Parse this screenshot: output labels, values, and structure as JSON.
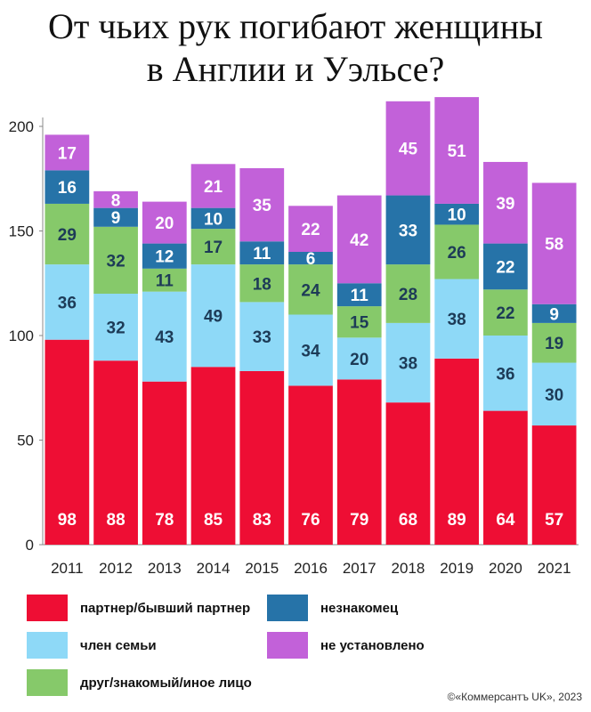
{
  "title_line1": "От чьих рук погибают женщины",
  "title_line2": "в Англии и Уэльсе?",
  "credit": "©«Коммерсантъ UK», 2023",
  "chart_data": {
    "type": "bar",
    "stacked": true,
    "categories": [
      "2011",
      "2012",
      "2013",
      "2014",
      "2015",
      "2016",
      "2017",
      "2018",
      "2019",
      "2020",
      "2021"
    ],
    "ylim": [
      0,
      200
    ],
    "yticks": [
      0,
      50,
      100,
      150,
      200
    ],
    "grid": false,
    "series": [
      {
        "name": "партнер/бывший партнер",
        "color": "#ee0e34",
        "values": [
          98,
          88,
          78,
          85,
          83,
          76,
          79,
          68,
          89,
          64,
          57
        ]
      },
      {
        "name": "член семьи",
        "color": "#8ed9f7",
        "values": [
          36,
          32,
          43,
          49,
          33,
          34,
          20,
          38,
          38,
          36,
          30
        ]
      },
      {
        "name": "друг/знакомый/иное лицо",
        "color": "#86c96a",
        "values": [
          29,
          32,
          11,
          17,
          18,
          24,
          15,
          28,
          26,
          22,
          19
        ]
      },
      {
        "name": "незнакомец",
        "color": "#2673a8",
        "values": [
          16,
          9,
          12,
          10,
          11,
          6,
          11,
          33,
          10,
          22,
          9
        ]
      },
      {
        "name": "не установлено",
        "color": "#c261d9",
        "values": [
          17,
          8,
          20,
          21,
          35,
          22,
          42,
          45,
          51,
          39,
          58
        ]
      }
    ]
  },
  "legend": [
    {
      "label": "партнер/бывший партнер",
      "color": "#ee0e34"
    },
    {
      "label": "член семьи",
      "color": "#8ed9f7"
    },
    {
      "label": "друг/знакомый/иное лицо",
      "color": "#86c96a"
    },
    {
      "label": "незнакомец",
      "color": "#2673a8"
    },
    {
      "label": "не установлено",
      "color": "#c261d9"
    }
  ]
}
